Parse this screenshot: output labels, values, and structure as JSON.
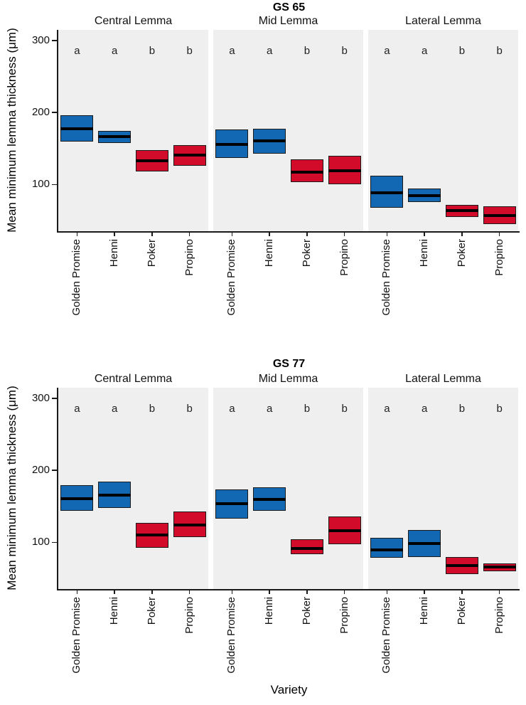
{
  "y_axis_label": "Mean minimum lemma thickness (μm)",
  "x_axis_label": "Variety",
  "palette": {
    "blue": "#1268b3",
    "red": "#d20b2a",
    "panel_background": "#efefef",
    "axis_color": "#1a1a1a"
  },
  "categories": [
    "Golden Promise",
    "Henni",
    "Poker",
    "Propino"
  ],
  "chart_data": [
    {
      "type": "crossbar-boxplot",
      "title": "GS 65",
      "ylabel": "Mean minimum lemma thickness (μm)",
      "xlabel": "Variety",
      "ylim": [
        35,
        315
      ],
      "yticks": [
        100,
        200,
        300
      ],
      "legend": "none",
      "grid": false,
      "facets": [
        {
          "label": "Central Lemma",
          "letters": [
            "a",
            "a",
            "b",
            "b"
          ],
          "boxes": [
            {
              "variety": "Golden Promise",
              "color": "#1268b3",
              "lower": 160,
              "mid": 178,
              "upper": 196
            },
            {
              "variety": "Henni",
              "color": "#1268b3",
              "lower": 158,
              "mid": 167,
              "upper": 175
            },
            {
              "variety": "Poker",
              "color": "#d20b2a",
              "lower": 118,
              "mid": 133,
              "upper": 148
            },
            {
              "variety": "Propino",
              "color": "#d20b2a",
              "lower": 126,
              "mid": 141,
              "upper": 155
            }
          ]
        },
        {
          "label": "Mid Lemma",
          "letters": [
            "a",
            "a",
            "b",
            "b"
          ],
          "boxes": [
            {
              "variety": "Golden Promise",
              "color": "#1268b3",
              "lower": 137,
              "mid": 156,
              "upper": 176
            },
            {
              "variety": "Henni",
              "color": "#1268b3",
              "lower": 143,
              "mid": 161,
              "upper": 177
            },
            {
              "variety": "Poker",
              "color": "#d20b2a",
              "lower": 103,
              "mid": 117,
              "upper": 135
            },
            {
              "variety": "Propino",
              "color": "#d20b2a",
              "lower": 100,
              "mid": 119,
              "upper": 140
            }
          ]
        },
        {
          "label": "Lateral Lemma",
          "letters": [
            "a",
            "a",
            "b",
            "b"
          ],
          "boxes": [
            {
              "variety": "Golden Promise",
              "color": "#1268b3",
              "lower": 68,
              "mid": 89,
              "upper": 112
            },
            {
              "variety": "Henni",
              "color": "#1268b3",
              "lower": 76,
              "mid": 85,
              "upper": 94
            },
            {
              "variety": "Poker",
              "color": "#d20b2a",
              "lower": 55,
              "mid": 64,
              "upper": 72
            },
            {
              "variety": "Propino",
              "color": "#d20b2a",
              "lower": 45,
              "mid": 57,
              "upper": 70
            }
          ]
        }
      ]
    },
    {
      "type": "crossbar-boxplot",
      "title": "GS 77",
      "ylabel": "Mean minimum lemma thickness (μm)",
      "xlabel": "Variety",
      "ylim": [
        35,
        315
      ],
      "yticks": [
        100,
        200,
        300
      ],
      "legend": "none",
      "grid": false,
      "facets": [
        {
          "label": "Central Lemma",
          "letters": [
            "a",
            "a",
            "b",
            "b"
          ],
          "boxes": [
            {
              "variety": "Golden Promise",
              "color": "#1268b3",
              "lower": 144,
              "mid": 161,
              "upper": 179
            },
            {
              "variety": "Henni",
              "color": "#1268b3",
              "lower": 148,
              "mid": 166,
              "upper": 184
            },
            {
              "variety": "Poker",
              "color": "#d20b2a",
              "lower": 92,
              "mid": 110,
              "upper": 127
            },
            {
              "variety": "Propino",
              "color": "#d20b2a",
              "lower": 107,
              "mid": 124,
              "upper": 143
            }
          ]
        },
        {
          "label": "Mid Lemma",
          "letters": [
            "a",
            "a",
            "b",
            "b"
          ],
          "boxes": [
            {
              "variety": "Golden Promise",
              "color": "#1268b3",
              "lower": 133,
              "mid": 154,
              "upper": 174
            },
            {
              "variety": "Henni",
              "color": "#1268b3",
              "lower": 144,
              "mid": 160,
              "upper": 176
            },
            {
              "variety": "Poker",
              "color": "#d20b2a",
              "lower": 83,
              "mid": 92,
              "upper": 104
            },
            {
              "variety": "Propino",
              "color": "#d20b2a",
              "lower": 97,
              "mid": 116,
              "upper": 136
            }
          ]
        },
        {
          "label": "Lateral Lemma",
          "letters": [
            "a",
            "a",
            "b",
            "b"
          ],
          "boxes": [
            {
              "variety": "Golden Promise",
              "color": "#1268b3",
              "lower": 79,
              "mid": 90,
              "upper": 106
            },
            {
              "variety": "Henni",
              "color": "#1268b3",
              "lower": 80,
              "mid": 99,
              "upper": 117
            },
            {
              "variety": "Poker",
              "color": "#d20b2a",
              "lower": 56,
              "mid": 68,
              "upper": 80
            },
            {
              "variety": "Propino",
              "color": "#d20b2a",
              "lower": 60,
              "mid": 66,
              "upper": 71
            }
          ]
        }
      ]
    }
  ]
}
